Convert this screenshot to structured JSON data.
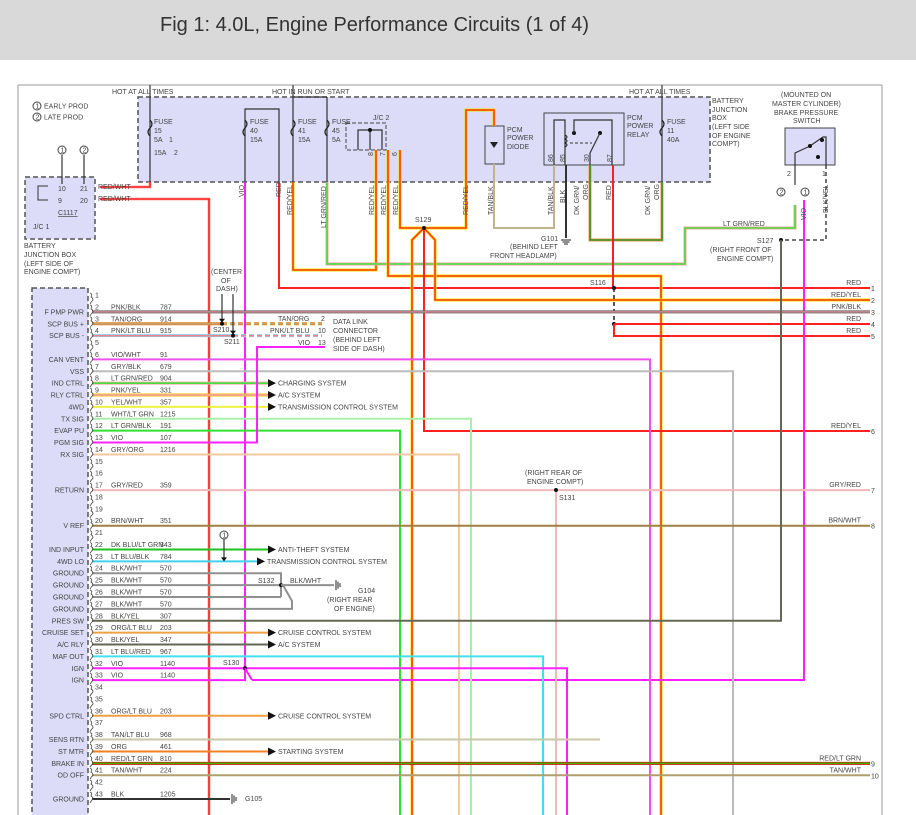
{
  "title": "Fig 1: 4.0L, Engine Performance Circuits (1 of 4)",
  "legend": [
    {
      "num": "1",
      "label": "EARLY PROD"
    },
    {
      "num": "2",
      "label": "LATE PROD"
    }
  ],
  "top_labels": {
    "hot_always_left": "HOT AT ALL TIMES",
    "hot_run_start": "HOT IN RUN OR START",
    "hot_always_right": "HOT AT ALL TIMES"
  },
  "fuses": [
    {
      "name": "FUSE",
      "num": "15",
      "rating": "5A",
      "note": "1",
      "alt_rating": "15A",
      "alt_note": "2"
    },
    {
      "name": "FUSE",
      "num": "40",
      "rating": "15A"
    },
    {
      "name": "FUSE",
      "num": "41",
      "rating": "15A"
    },
    {
      "name": "FUSE",
      "num": "45",
      "rating": "5A"
    },
    {
      "name": "FUSE",
      "num": "11",
      "rating": "40A"
    }
  ],
  "jc2": {
    "label": "J/C 2",
    "pins": [
      "8",
      "7",
      "6"
    ]
  },
  "pcm_diode": [
    "PCM",
    "POWER",
    "DIODE"
  ],
  "relay": {
    "label": [
      "PCM",
      "POWER",
      "RELAY"
    ],
    "pins": [
      "86",
      "85",
      "30",
      "87"
    ]
  },
  "bjb_top_label": [
    "BATTERY",
    "JUNCTION",
    "BOX",
    "(LEFT SIDE",
    "OF ENGINE",
    "COMPT)"
  ],
  "jc1": {
    "label": "J/C 1",
    "connector": "C1117",
    "pins": [
      [
        "10",
        "21"
      ],
      [
        "9",
        "20"
      ]
    ],
    "wire": "RED/WHT",
    "box_label": [
      "BATTERY",
      "JUNCTION BOX",
      "(LEFT SIDE OF",
      "ENGINE COMPT)"
    ]
  },
  "top_wires": [
    "VIO",
    "RED",
    "RED/YEL",
    "LT GRN/RED",
    "RED/YEL",
    "RED/YEL",
    "RED/YEL",
    "RED/YEL",
    "TAN/BLK",
    "TAN/BLK",
    "BLK",
    "DK GRN/",
    "ORG",
    "RED",
    "DK GRN/",
    "ORG"
  ],
  "brake_switch": {
    "label": [
      "(MOUNTED ON",
      "MASTER CYLINDER)",
      "BRAKE PRESSURE",
      "SWITCH"
    ],
    "pins": [
      "2",
      "1"
    ],
    "wire_vio": "VIO",
    "wire_blkyel": "BLK/YEL",
    "notes": [
      "2",
      "1"
    ]
  },
  "splices": {
    "s129": "S129",
    "s116": "S116",
    "s127": "S127",
    "s127_loc": [
      "(RIGHT FRONT OF",
      "ENGINE COMPT)"
    ],
    "s210": "S210",
    "s211": "S211",
    "center_dash": [
      "(CENTER",
      "OF",
      "DASH)"
    ],
    "s130": "S130",
    "s131": "S131",
    "s131_loc": [
      "(RIGHT REAR OF",
      "ENGINE COMPT)"
    ],
    "s132": "S132",
    "s132_wire": "BLK/WHT"
  },
  "grounds": {
    "g101": "G101",
    "g101_loc": [
      "(BEHIND LEFT",
      "FRONT HEADLAMP)"
    ],
    "g104": "G104",
    "g104_loc": [
      "(RIGHT REAR",
      "OF ENGINE)"
    ],
    "g105": "G105"
  },
  "lt_grn_red_label": "LT GRN/RED",
  "dlc": {
    "label": [
      "DATA LINK",
      "CONNECTOR",
      "(BEHIND LEFT",
      "SIDE OF DASH)"
    ],
    "pins": [
      {
        "wire": "TAN/ORG",
        "pin": "2"
      },
      {
        "wire": "PNK/LT BLU",
        "pin": "10"
      },
      {
        "wire": "VIO",
        "pin": "13"
      }
    ]
  },
  "early_note": "1",
  "right_connector": [
    {
      "pin": "1",
      "wire": "RED"
    },
    {
      "pin": "2",
      "wire": "RED/YEL"
    },
    {
      "pin": "3",
      "wire": "PNK/BLK"
    },
    {
      "pin": "4",
      "wire": "RED"
    },
    {
      "pin": "5",
      "wire": "RED"
    },
    {
      "pin": "6",
      "wire": "RED/YEL"
    },
    {
      "pin": "7",
      "wire": "GRY/RED"
    },
    {
      "pin": "8",
      "wire": "BRN/WHT"
    },
    {
      "pin": "9",
      "wire": "RED/LT GRN"
    },
    {
      "pin": "10",
      "wire": "TAN/WHT"
    }
  ],
  "wire_colors": {
    "RED": [
      "#ff2020"
    ],
    "RED/YEL": [
      "#ff3a10",
      "#f0e000"
    ],
    "RED/WHT": [
      "#ff2020",
      "#ffb0b0"
    ],
    "VIO": [
      "#ff20ff"
    ],
    "LT GRN/RED": [
      "#40e040",
      "#ffa0a0"
    ],
    "TAN/BLK": [
      "#c0b490"
    ],
    "BLK": [
      "#333333"
    ],
    "DK GRN/ORG": [
      "#309030",
      "#f0a040"
    ],
    "BLK/YEL": [
      "#666655"
    ],
    "PNK/BLK": [
      "#d08890",
      "#666666"
    ],
    "TAN/ORG": [
      "#c8a070",
      "#e08020"
    ],
    "PNK/LT BLU": [
      "#f08090",
      "#80d8f0"
    ],
    "VIO/WHT": [
      "#f050f0"
    ],
    "GRY/BLK": [
      "#bbbbbb"
    ],
    "PNK/YEL": [
      "#f8a0a0",
      "#f0c000"
    ],
    "YEL/WHT": [
      "#f0f040"
    ],
    "WHT/LT GRN": [
      "#a8f0a8"
    ],
    "LT GRN/BLK": [
      "#30e030"
    ],
    "GRY/ORG": [
      "#f0c8a0"
    ],
    "GRY/RED": [
      "#f0b8b8"
    ],
    "BRN/WHT": [
      "#a08040"
    ],
    "DK BLU/LT GRN": [
      "#20c020"
    ],
    "LT BLU/BLK": [
      "#40d0f0"
    ],
    "BLK/WHT": [
      "#909090"
    ],
    "ORG/LT BLU": [
      "#f0a040"
    ],
    "LT BLU/RED": [
      "#40e0f0"
    ],
    "TAN/LT BLU": [
      "#c8c8a8"
    ],
    "ORG": [
      "#f08020"
    ],
    "RED/LT GRN": [
      "#40b000",
      "#e00000"
    ],
    "TAN/WHT": [
      "#b0a070"
    ]
  },
  "pcm_pins": [
    {
      "pin": "1"
    },
    {
      "pin": "2",
      "wire": "PNK/BLK",
      "circuit": "787",
      "func": "F PMP PWR"
    },
    {
      "pin": "3",
      "wire": "TAN/ORG",
      "circuit": "914",
      "func": "SCP BUS +"
    },
    {
      "pin": "4",
      "wire": "PNK/LT BLU",
      "circuit": "915",
      "func": "SCP BUS -"
    },
    {
      "pin": "5"
    },
    {
      "pin": "6",
      "wire": "VIO/WHT",
      "circuit": "91",
      "func": "CAN VENT"
    },
    {
      "pin": "7",
      "wire": "GRY/BLK",
      "circuit": "679",
      "func": "VSS"
    },
    {
      "pin": "8",
      "wire": "LT GRN/RED",
      "circuit": "904",
      "func": "IND CTRL",
      "dest": "CHARGING SYSTEM"
    },
    {
      "pin": "9",
      "wire": "PNK/YEL",
      "circuit": "331",
      "func": "RLY CTRL",
      "dest": "A/C SYSTEM"
    },
    {
      "pin": "10",
      "wire": "YEL/WHT",
      "circuit": "357",
      "func": "4WD",
      "dest": "TRANSMISSION CONTROL SYSTEM"
    },
    {
      "pin": "11",
      "wire": "WHT/LT GRN",
      "circuit": "1215",
      "func": "TX SIG"
    },
    {
      "pin": "12",
      "wire": "LT GRN/BLK",
      "circuit": "191",
      "func": "EVAP PU"
    },
    {
      "pin": "13",
      "wire": "VIO",
      "circuit": "107",
      "func": "PGM SIG"
    },
    {
      "pin": "14",
      "wire": "GRY/ORG",
      "circuit": "1216",
      "func": "RX SIG"
    },
    {
      "pin": "15"
    },
    {
      "pin": "16"
    },
    {
      "pin": "17",
      "wire": "GRY/RED",
      "circuit": "359",
      "func": "RETURN"
    },
    {
      "pin": "18"
    },
    {
      "pin": "19"
    },
    {
      "pin": "20",
      "wire": "BRN/WHT",
      "circuit": "351",
      "func": "V REF"
    },
    {
      "pin": "21"
    },
    {
      "pin": "22",
      "wire": "DK BLU/LT GRN",
      "circuit": "343",
      "func": "IND INPUT",
      "dest": "ANTI-THEFT SYSTEM"
    },
    {
      "pin": "23",
      "wire": "LT BLU/BLK",
      "circuit": "784",
      "func": "4WD LO",
      "dest": "TRANSMISSION CONTROL SYSTEM"
    },
    {
      "pin": "24",
      "wire": "BLK/WHT",
      "circuit": "570",
      "func": "GROUND"
    },
    {
      "pin": "25",
      "wire": "BLK/WHT",
      "circuit": "570",
      "func": "GROUND"
    },
    {
      "pin": "26",
      "wire": "BLK/WHT",
      "circuit": "570",
      "func": "GROUND"
    },
    {
      "pin": "27",
      "wire": "BLK/WHT",
      "circuit": "570",
      "func": "GROUND"
    },
    {
      "pin": "28",
      "wire": "BLK/YEL",
      "circuit": "307",
      "func": "PRES SW"
    },
    {
      "pin": "29",
      "wire": "ORG/LT BLU",
      "circuit": "203",
      "func": "CRUISE SET",
      "dest": "CRUISE CONTROL SYSTEM"
    },
    {
      "pin": "30",
      "wire": "BLK/YEL",
      "circuit": "347",
      "func": "A/C RLY",
      "dest": "A/C SYSTEM"
    },
    {
      "pin": "31",
      "wire": "LT BLU/RED",
      "circuit": "967",
      "func": "MAF OUT"
    },
    {
      "pin": "32",
      "wire": "VIO",
      "circuit": "1140",
      "func": "IGN"
    },
    {
      "pin": "33",
      "wire": "VIO",
      "circuit": "1140",
      "func": "IGN"
    },
    {
      "pin": "34"
    },
    {
      "pin": "35"
    },
    {
      "pin": "36",
      "wire": "ORG/LT BLU",
      "circuit": "203",
      "func": "SPD CTRL",
      "dest": "CRUISE CONTROL SYSTEM"
    },
    {
      "pin": "37"
    },
    {
      "pin": "38",
      "wire": "TAN/LT BLU",
      "circuit": "968",
      "func": "SENS RTN"
    },
    {
      "pin": "39",
      "wire": "ORG",
      "circuit": "461",
      "func": "ST MTR",
      "dest": "STARTING SYSTEM"
    },
    {
      "pin": "40",
      "wire": "RED/LT GRN",
      "circuit": "810",
      "func": "BRAKE IN"
    },
    {
      "pin": "41",
      "wire": "TAN/WHT",
      "circuit": "224",
      "func": "OD OFF"
    },
    {
      "pin": "42"
    },
    {
      "pin": "43",
      "wire": "BLK",
      "circuit": "1205",
      "func": "GROUND"
    }
  ]
}
